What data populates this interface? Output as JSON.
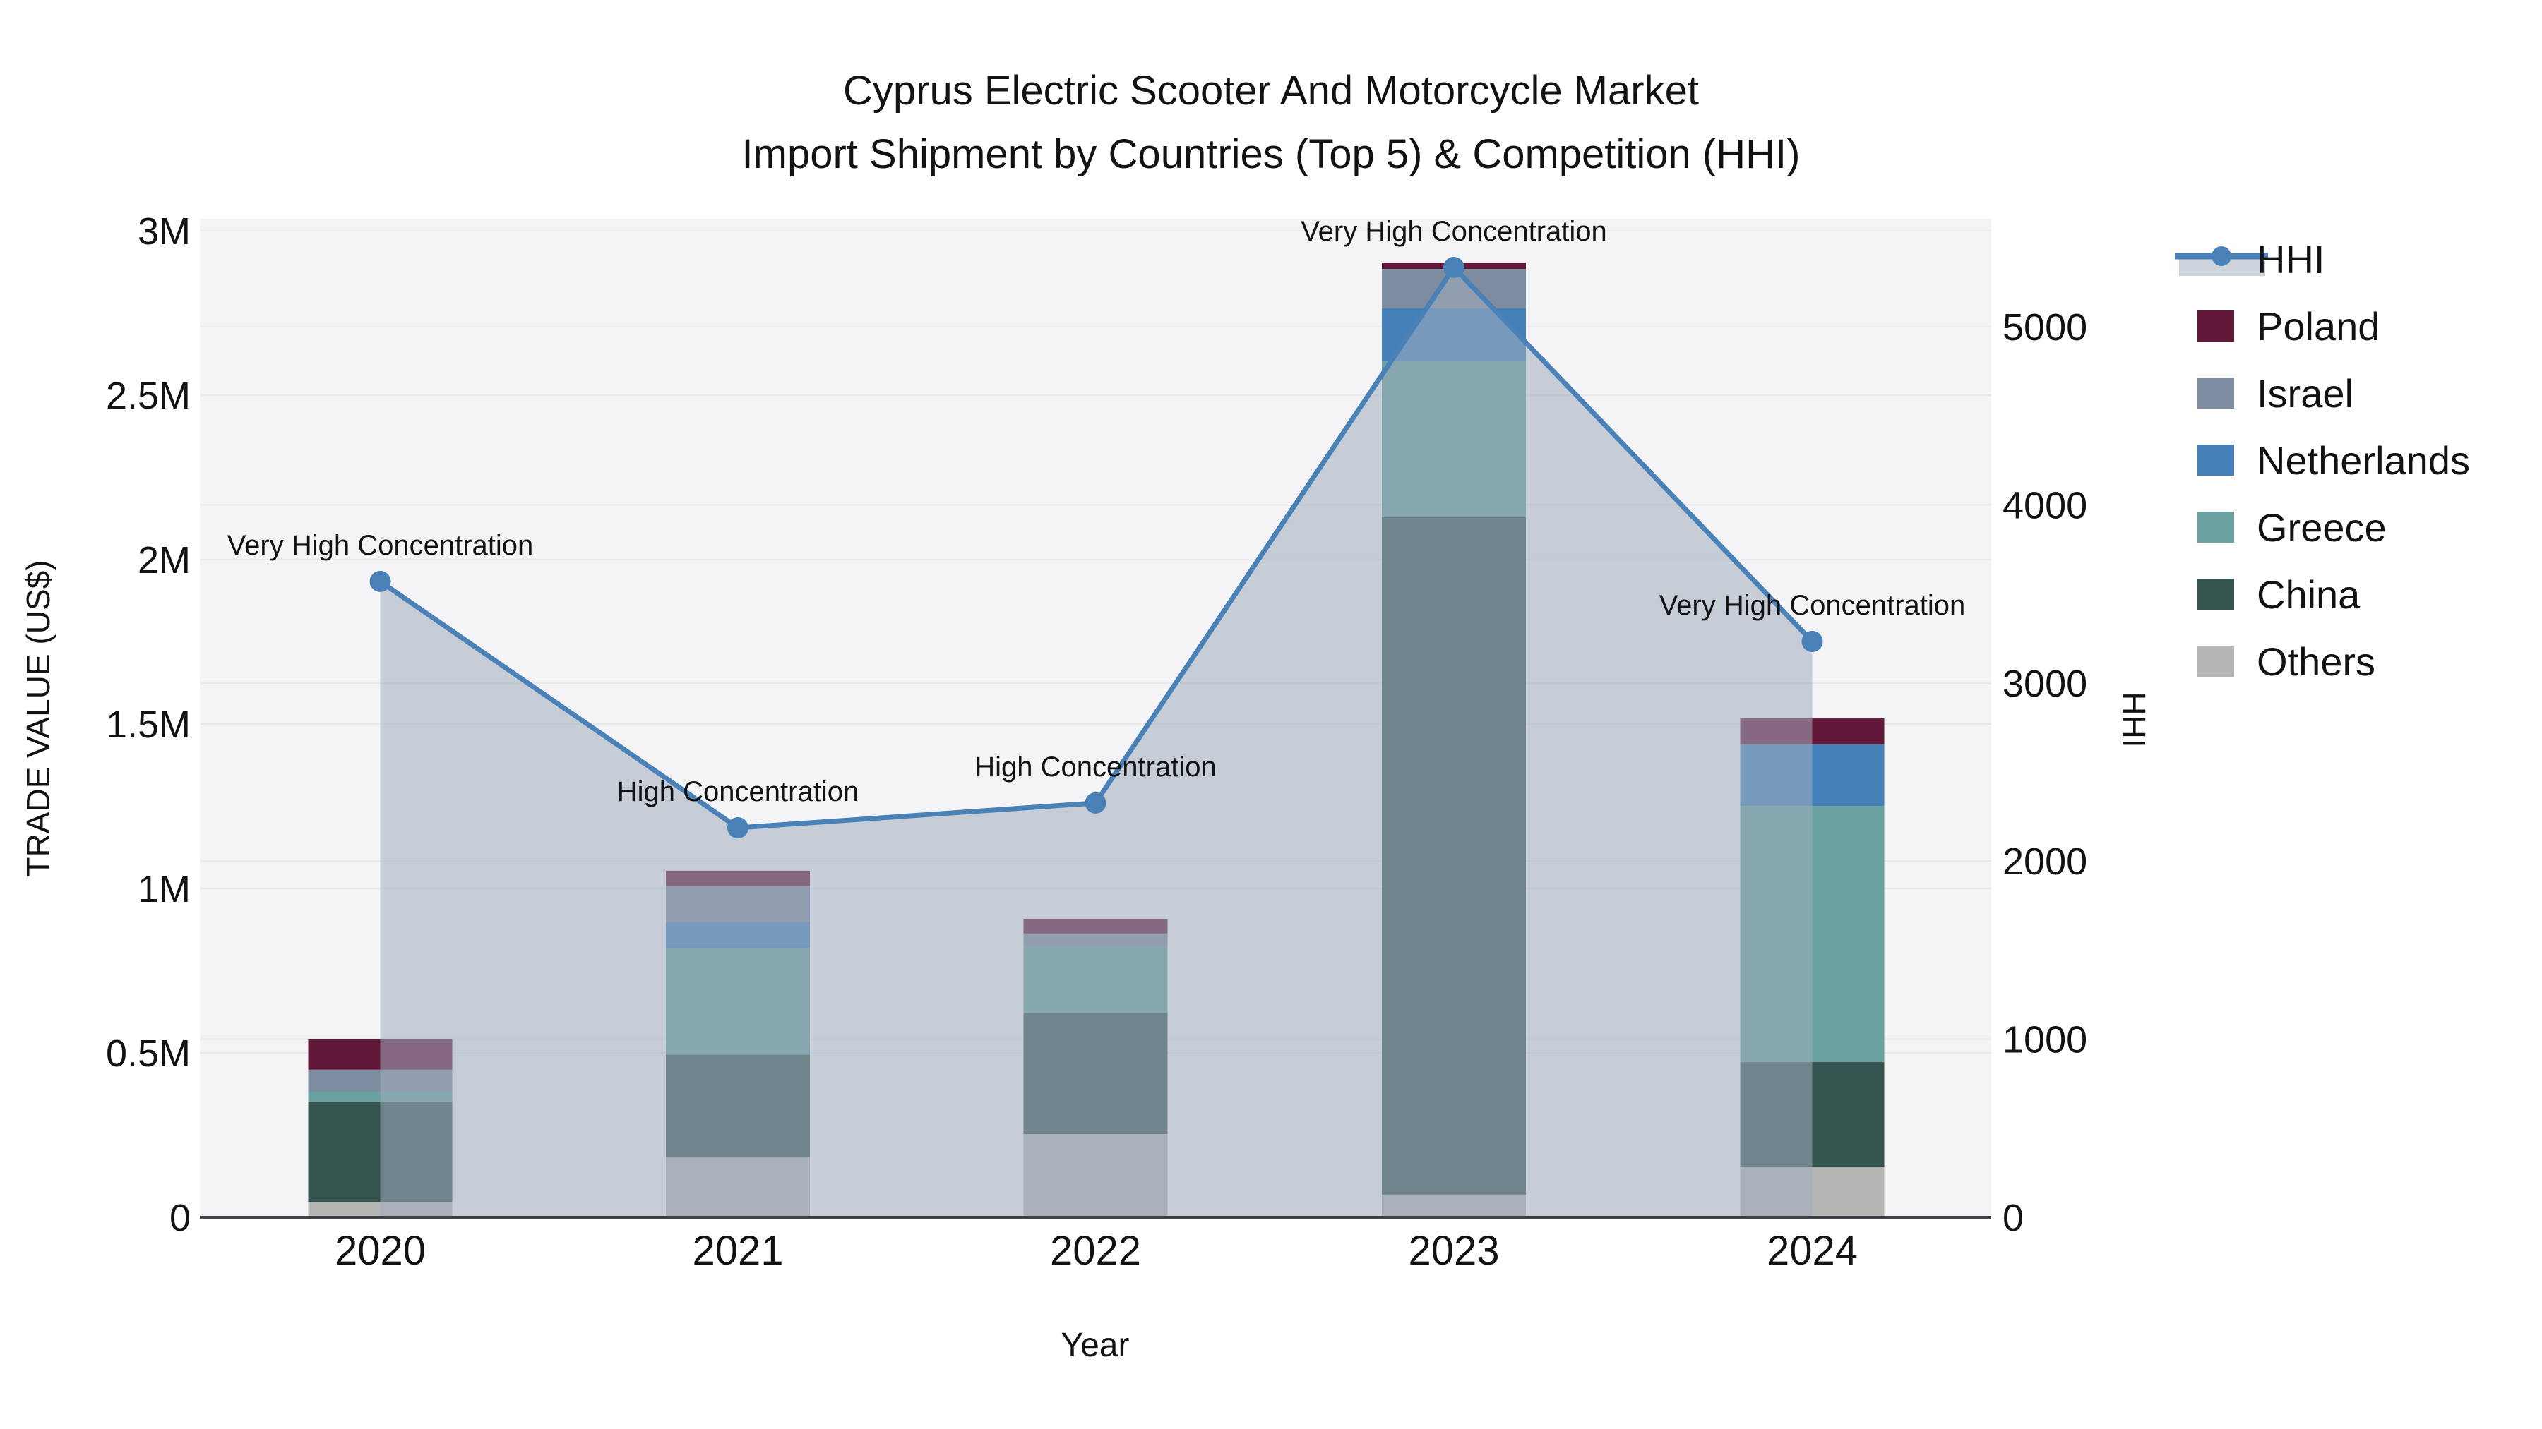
{
  "title": {
    "line1": "Cyprus Electric Scooter And Motorcycle Market",
    "line2": "Import Shipment by Countries (Top 5) & Competition (HHI)"
  },
  "axes": {
    "x_title": "Year",
    "y_left_title": "TRADE VALUE (US$)",
    "y_right_title": "HHI",
    "y_left_tick_labels": [
      "0",
      "0.5M",
      "1M",
      "1.5M",
      "2M",
      "2.5M",
      "3M"
    ],
    "y_right_tick_labels": [
      "0",
      "1000",
      "2000",
      "3000",
      "4000",
      "5000"
    ]
  },
  "legend": {
    "entries": [
      "HHI",
      "Poland",
      "Israel",
      "Netherlands",
      "Greece",
      "China",
      "Others"
    ]
  },
  "colors": {
    "hhi_line": "#4a82b8",
    "hhi_band": "#cdd4de",
    "area_fill": "rgba(160,173,190,0.55)",
    "poland": "#621839",
    "israel": "#7d8c9e",
    "netherlands": "#4581b8",
    "greece": "#68a19f",
    "china": "#35544f",
    "others": "#b6b7b5",
    "plot_bg": "#f4f4f6",
    "gridline": "#e8eaed",
    "baseline": "#3f444a"
  },
  "chart_data": {
    "type": "bar",
    "subtype": "stacked-bars-with-line",
    "categories": [
      "2020",
      "2021",
      "2022",
      "2023",
      "2024"
    ],
    "xlabel": "Year",
    "ylabel_left": "TRADE VALUE (US$)",
    "ylabel_right": "HHI",
    "y_left_range_usd": [
      0,
      3000000
    ],
    "y_left_tick_step_usd": 500000,
    "y_right_range": [
      0,
      5600
    ],
    "y_right_tick_step": 1000,
    "grid": true,
    "legend_position": "right",
    "stack_order_bottom_to_top": [
      "Others",
      "China",
      "Greece",
      "Netherlands",
      "Israel",
      "Poland"
    ],
    "series": [
      {
        "name": "Others",
        "color_key": "others",
        "values_usd": [
          47000,
          182000,
          253000,
          69000,
          152000
        ]
      },
      {
        "name": "China",
        "color_key": "china",
        "values_usd": [
          305000,
          313000,
          369000,
          2060000,
          320000
        ]
      },
      {
        "name": "Greece",
        "color_key": "greece",
        "values_usd": [
          30000,
          324000,
          202000,
          474000,
          779000
        ]
      },
      {
        "name": "Netherlands",
        "color_key": "netherlands",
        "values_usd": [
          0,
          79000,
          0,
          161000,
          187000
        ]
      },
      {
        "name": "Israel",
        "color_key": "israel",
        "values_usd": [
          67000,
          109000,
          39000,
          120000,
          0
        ]
      },
      {
        "name": "Poland",
        "color_key": "poland",
        "values_usd": [
          92000,
          47000,
          43000,
          19000,
          79000
        ]
      }
    ],
    "bar_totals_usd": [
      541000,
      1054000,
      906000,
      2903000,
      1517000
    ],
    "hhi_line": {
      "name": "HHI",
      "values": [
        3570,
        2187,
        2326,
        5333,
        3233
      ],
      "style": "line+markers+area"
    },
    "annotations": [
      {
        "x": "2020",
        "text": "Very High Concentration"
      },
      {
        "x": "2021",
        "text": "High Concentration"
      },
      {
        "x": "2022",
        "text": "High Concentration"
      },
      {
        "x": "2023",
        "text": "Very High Concentration"
      },
      {
        "x": "2024",
        "text": "Very High Concentration"
      }
    ]
  }
}
